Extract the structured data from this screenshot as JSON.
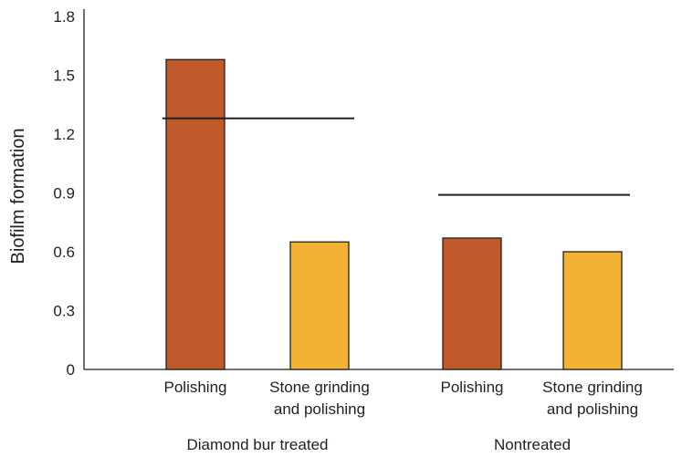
{
  "chart_data": {
    "type": "bar",
    "title": "",
    "ylabel": "Biofilm formation",
    "xlabel": "",
    "ylim": [
      0,
      1.8
    ],
    "yticks": [
      0,
      0.3,
      0.6,
      0.9,
      1.2,
      1.5,
      1.8
    ],
    "ytick_labels": [
      "0",
      "0.3",
      "0.6",
      "0.9",
      "1.2",
      "1.5",
      "1.8"
    ],
    "grid": false,
    "legend": "none",
    "groups": [
      {
        "label": "Diamond bur treated",
        "bars": [
          {
            "label_lines": [
              "Polishing"
            ],
            "value": 1.58,
            "color": "#c05a2a"
          },
          {
            "label_lines": [
              "Stone grinding",
              "and polishing"
            ],
            "value": 0.65,
            "color": "#f2b234"
          }
        ],
        "reference_line": 1.28
      },
      {
        "label": "Nontreated",
        "bars": [
          {
            "label_lines": [
              "Polishing"
            ],
            "value": 0.67,
            "color": "#c05a2a"
          },
          {
            "label_lines": [
              "Stone grinding",
              "and polishing"
            ],
            "value": 0.6,
            "color": "#f2b234"
          }
        ],
        "reference_line": 0.89
      }
    ]
  }
}
